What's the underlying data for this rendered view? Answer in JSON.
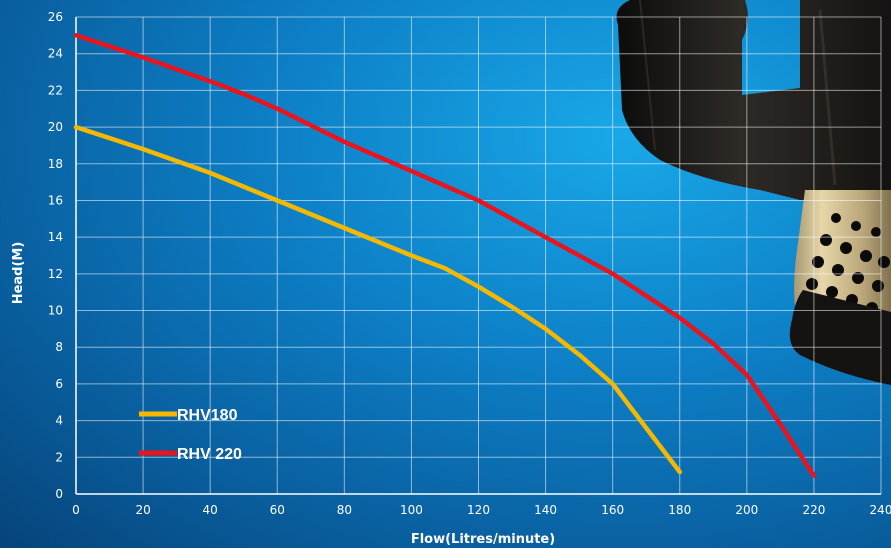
{
  "chart_data": {
    "type": "line",
    "xlabel": "Flow(Litres/minute)",
    "ylabel": "Head(M)",
    "xlim": [
      0,
      240
    ],
    "ylim": [
      0,
      26
    ],
    "xticks": [
      0,
      20,
      40,
      60,
      80,
      100,
      120,
      140,
      160,
      180,
      200,
      220,
      240
    ],
    "yticks": [
      0,
      2,
      4,
      6,
      8,
      10,
      12,
      14,
      16,
      18,
      20,
      22,
      24,
      26
    ],
    "grid": true,
    "legend_position": "bottom-left",
    "series": [
      {
        "name": "RHV180",
        "color": "#f5b800",
        "x": [
          0,
          20,
          40,
          60,
          80,
          100,
          110,
          120,
          130,
          140,
          150,
          160,
          170,
          180
        ],
        "y": [
          20,
          18.8,
          17.5,
          16,
          14.5,
          13,
          12.3,
          11.3,
          10.2,
          9,
          7.6,
          6,
          3.6,
          1.2
        ]
      },
      {
        "name": "RHV 220",
        "color": "#e8141e",
        "x": [
          0,
          20,
          40,
          50,
          60,
          80,
          100,
          120,
          140,
          160,
          180,
          190,
          200,
          210,
          220
        ],
        "y": [
          25,
          23.8,
          22.5,
          21.8,
          21,
          19.2,
          17.6,
          16,
          14,
          12,
          9.6,
          8.2,
          6.5,
          3.8,
          1
        ]
      }
    ]
  }
}
